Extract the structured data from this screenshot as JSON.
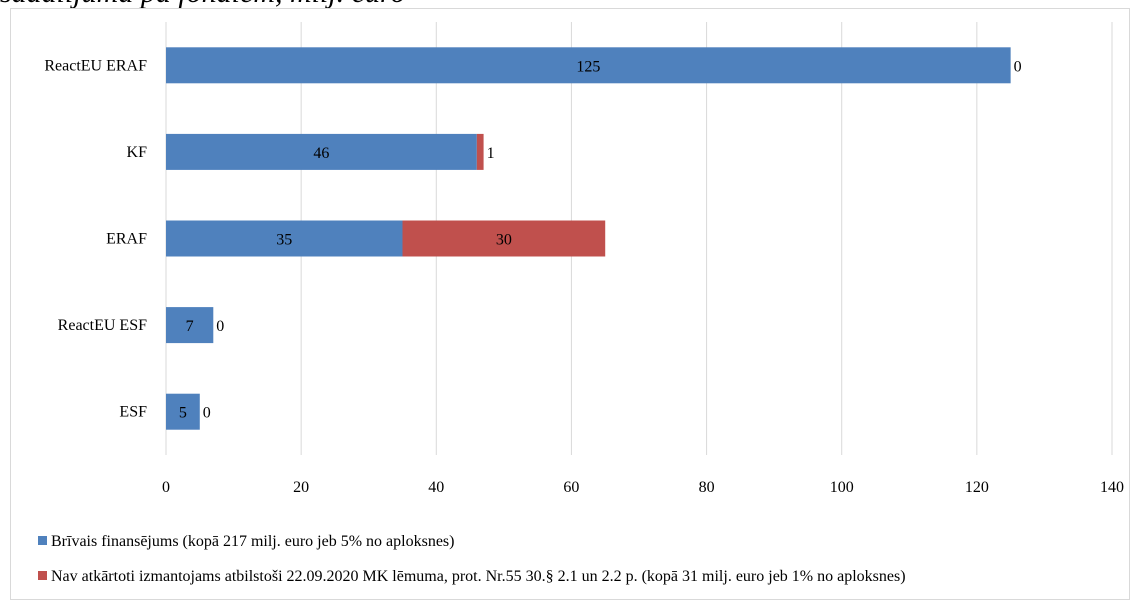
{
  "title": "sadalījumā pa fondiem, milj. euro",
  "chart_data": {
    "type": "bar",
    "orientation": "horizontal",
    "stacked": true,
    "categories": [
      "ReactEU ERAF",
      "KF",
      "ERAF",
      "ReactEU ESF",
      "ESF"
    ],
    "series": [
      {
        "name": "Brīvais finansējums (kopā 217 milj. euro jeb 5% no aploksnes)",
        "values": [
          125,
          46,
          35,
          7,
          5
        ],
        "color": "#4F81BD"
      },
      {
        "name": "Nav atkārtoti izmantojams atbilstoši 22.09.2020 MK lēmuma, prot. Nr.55 30.§ 2.1 un 2.2 p. (kopā 31 milj. euro jeb 1% no aploksnes)",
        "values": [
          0,
          1,
          30,
          0,
          0
        ],
        "color": "#C0504D"
      }
    ],
    "xlim": [
      0,
      140
    ],
    "xticks": [
      0,
      20,
      40,
      60,
      80,
      100,
      120,
      140
    ],
    "grid": "vertical",
    "legend": "bottom"
  }
}
